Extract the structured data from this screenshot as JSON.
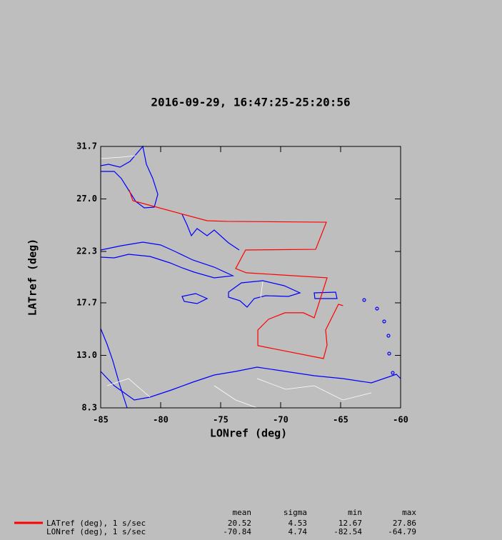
{
  "chart_data": {
    "type": "line",
    "title": "2016-09-29, 16:47:25-25:20:56",
    "x_label": "LONref (deg)",
    "y_label": "LATref (deg)",
    "x": [
      -82.62,
      -82.32,
      -76.13,
      -74.46,
      -66.19,
      -67.08,
      -72.92,
      -73.75,
      -72.86,
      -66.13,
      -67.2,
      -68.1,
      -69.64,
      -71.01,
      -71.9,
      -71.9,
      -66.43,
      -66.13,
      -66.25,
      -65.18,
      -64.8
    ],
    "y": [
      27.8,
      26.84,
      25.05,
      24.99,
      24.92,
      22.49,
      22.43,
      20.77,
      20.39,
      19.94,
      16.36,
      16.81,
      16.81,
      16.23,
      15.27,
      13.87,
      12.71,
      13.92,
      15.27,
      17.57,
      17.45
    ],
    "color": "#ff0000",
    "xlim": [
      -85,
      -60
    ],
    "xticks": [
      -85,
      -80,
      -75,
      -70,
      -65,
      -60
    ],
    "ylim": [
      8.3,
      31.7
    ],
    "yticks": [
      8.3,
      {
        "value": 13,
        "label": "13.0"
      },
      17.7,
      22.3,
      {
        "value": 27,
        "label": "27.0"
      },
      31.7
    ],
    "stats": {
      "headers": [
        "mean",
        "sigma",
        "min",
        "max"
      ],
      "rows": [
        {
          "label": "LATref (deg), 1 s/sec",
          "values": [
            20.52,
            4.53,
            12.67,
            27.86
          ]
        },
        {
          "label": "LONref (deg), 1 s/sec",
          "values": [
            -70.84,
            4.74,
            -82.54,
            -64.79
          ]
        }
      ]
    }
  }
}
